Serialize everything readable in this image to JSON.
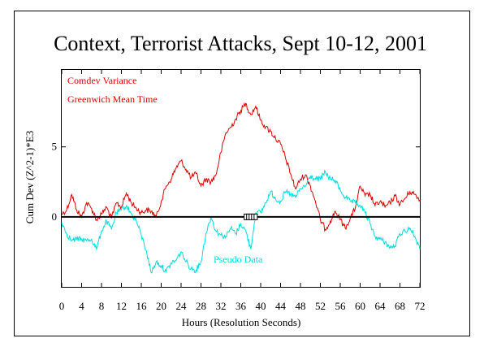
{
  "chart_data": {
    "type": "line",
    "title": "Context, Terrorist Attacks, Sept 10-12, 2001",
    "xlabel": "Hours (Resolution Seconds)",
    "ylabel": "Cum Dev (Z^2-1)*E3",
    "xlim": [
      0,
      72
    ],
    "ylim": [
      -5,
      10.5
    ],
    "x_ticks": [
      0,
      4,
      8,
      12,
      16,
      20,
      24,
      28,
      32,
      36,
      40,
      44,
      48,
      52,
      56,
      60,
      64,
      68,
      72
    ],
    "y_ticks": [
      0,
      5
    ],
    "grid": false,
    "event_markers": {
      "label": "",
      "x": [
        37,
        37.5,
        38,
        38.5,
        39
      ],
      "y": [
        0,
        0,
        0,
        0,
        0
      ]
    },
    "annotations": [
      {
        "text": "Comdev Variance",
        "color": "#e00000"
      },
      {
        "text": "Greenwich Mean Time",
        "color": "#e00000"
      },
      {
        "text": "Pseudo Data",
        "color": "#00dddd"
      }
    ],
    "series": [
      {
        "name": "Comdev Variance",
        "color": "#e00000",
        "x": [
          0,
          1,
          2,
          3,
          4,
          5,
          6,
          7,
          8,
          9,
          10,
          11,
          12,
          13,
          14,
          15,
          16,
          17,
          18,
          19,
          20,
          21,
          22,
          23,
          24,
          25,
          26,
          27,
          28,
          29,
          30,
          31,
          32,
          33,
          34,
          35,
          36,
          37,
          38,
          39,
          40,
          41,
          42,
          43,
          44,
          45,
          46,
          47,
          48,
          49,
          50,
          51,
          52,
          53,
          54,
          55,
          56,
          57,
          58,
          59,
          60,
          61,
          62,
          63,
          64,
          65,
          66,
          67,
          68,
          69,
          70,
          71,
          72
        ],
        "values": [
          0.2,
          0.5,
          1.6,
          0.5,
          0.0,
          1.0,
          0.6,
          -0.2,
          0.2,
          0.7,
          -0.1,
          1.0,
          0.7,
          1.7,
          1.0,
          0.6,
          0.3,
          0.5,
          0.4,
          0.0,
          1.1,
          2.2,
          2.7,
          3.5,
          4.0,
          3.4,
          2.8,
          3.1,
          2.2,
          2.7,
          2.5,
          3.0,
          4.6,
          6.0,
          6.4,
          7.0,
          7.6,
          8.1,
          7.3,
          7.9,
          6.9,
          6.4,
          6.1,
          5.6,
          5.2,
          4.2,
          3.1,
          2.0,
          2.7,
          3.0,
          2.2,
          1.1,
          -0.2,
          -0.9,
          -0.3,
          0.4,
          -0.2,
          -0.8,
          -0.1,
          0.6,
          2.2,
          1.5,
          1.6,
          0.8,
          1.1,
          0.7,
          1.0,
          1.5,
          0.9,
          1.3,
          1.8,
          1.6,
          1.2
        ]
      },
      {
        "name": "Pseudo Data",
        "color": "#00dddd",
        "x": [
          0,
          1,
          2,
          3,
          4,
          5,
          6,
          7,
          8,
          9,
          10,
          11,
          12,
          13,
          14,
          15,
          16,
          17,
          18,
          19,
          20,
          21,
          22,
          23,
          24,
          25,
          26,
          27,
          28,
          29,
          30,
          31,
          32,
          33,
          34,
          35,
          36,
          37,
          38,
          39,
          40,
          41,
          42,
          43,
          44,
          45,
          46,
          47,
          48,
          49,
          50,
          51,
          52,
          53,
          54,
          55,
          56,
          57,
          58,
          59,
          60,
          61,
          62,
          63,
          64,
          65,
          66,
          67,
          68,
          69,
          70,
          71,
          72
        ],
        "values": [
          -0.4,
          -1.2,
          -1.7,
          -1.6,
          -1.6,
          -1.7,
          -1.6,
          -2.3,
          -1.0,
          -0.3,
          -0.9,
          0.3,
          0.5,
          0.8,
          0.2,
          -0.3,
          -1.3,
          -2.4,
          -4.0,
          -3.2,
          -3.5,
          -3.9,
          -3.3,
          -3.1,
          -2.5,
          -3.2,
          -3.7,
          -3.8,
          -3.2,
          -1.2,
          0.0,
          -1.0,
          -1.3,
          -1.4,
          -0.8,
          -1.2,
          -0.5,
          -1.0,
          -2.3,
          0.3,
          0.3,
          1.0,
          1.8,
          1.3,
          1.1,
          1.8,
          1.6,
          1.4,
          2.0,
          2.2,
          2.9,
          2.7,
          2.7,
          3.2,
          2.7,
          2.6,
          1.9,
          1.4,
          1.1,
          1.0,
          0.8,
          0.3,
          -0.5,
          -1.4,
          -1.6,
          -1.8,
          -2.2,
          -2.1,
          -1.2,
          -1.0,
          -0.8,
          -1.4,
          -2.3
        ]
      }
    ]
  }
}
